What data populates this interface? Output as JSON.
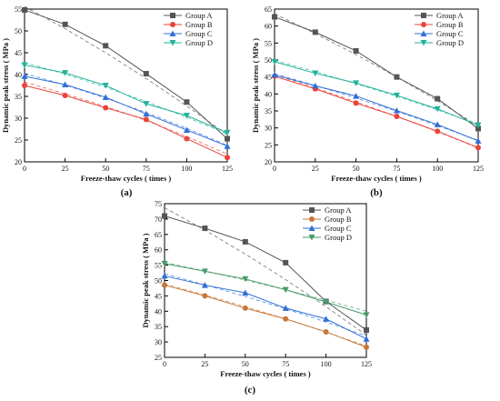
{
  "chart_data": [
    {
      "type": "line",
      "label": "(a)",
      "xlabel": "Freeze-thaw cycles ( times )",
      "ylabel": "Dynamic peak stress ( MPa )",
      "x": [
        0,
        25,
        50,
        75,
        100,
        125
      ],
      "xticks": [
        "0",
        "25",
        "50",
        "75",
        "100",
        "125"
      ],
      "yticks": [
        20,
        25,
        30,
        35,
        40,
        45,
        50,
        55
      ],
      "xlim": [
        0,
        125
      ],
      "ylim": [
        20,
        55
      ],
      "legend": "top-right",
      "fit_lines": "dashed",
      "series": [
        {
          "name": "Group A",
          "color": "#555555",
          "marker": "square",
          "values": [
            54.8,
            51.5,
            46.6,
            40.2,
            33.7,
            25.3
          ],
          "fit": [
            55.6,
            50.5,
            45.0,
            39.1,
            32.8,
            26.2
          ]
        },
        {
          "name": "Group B",
          "color": "#e8443a",
          "marker": "circle",
          "values": [
            37.5,
            35.2,
            32.4,
            29.7,
            25.3,
            21.0
          ],
          "fit": [
            38.3,
            35.6,
            32.7,
            29.5,
            25.8,
            21.8
          ]
        },
        {
          "name": "Group C",
          "color": "#2f6fd6",
          "marker": "triangle-up",
          "values": [
            39.6,
            37.7,
            34.8,
            31.0,
            27.3,
            23.6
          ],
          "fit": [
            40.3,
            37.6,
            34.6,
            31.3,
            27.7,
            23.8
          ]
        },
        {
          "name": "Group D",
          "color": "#22b39a",
          "marker": "triangle-down",
          "values": [
            42.2,
            40.4,
            37.5,
            33.3,
            30.6,
            26.7
          ],
          "fit": [
            42.8,
            40.1,
            37.1,
            33.8,
            30.2,
            26.4
          ]
        }
      ]
    },
    {
      "type": "line",
      "label": "(b)",
      "xlabel": "Freeze-thaw cycles ( times )",
      "ylabel": "Dynamic peak stress ( MPa )",
      "x": [
        0,
        25,
        50,
        75,
        100,
        125
      ],
      "xticks": [
        "0",
        "25",
        "50",
        "75",
        "100",
        "125"
      ],
      "yticks": [
        20,
        25,
        30,
        35,
        40,
        45,
        50,
        55,
        60,
        65
      ],
      "xlim": [
        0,
        125
      ],
      "ylim": [
        20,
        65
      ],
      "legend": "top-right",
      "fit_lines": "dashed",
      "series": [
        {
          "name": "Group A",
          "color": "#555555",
          "marker": "square",
          "values": [
            62.7,
            58.2,
            52.7,
            45.0,
            38.6,
            29.8
          ],
          "fit": [
            63.6,
            57.8,
            51.6,
            45.0,
            38.0,
            30.6
          ]
        },
        {
          "name": "Group B",
          "color": "#e8443a",
          "marker": "circle",
          "values": [
            45.2,
            41.5,
            37.3,
            33.4,
            29.0,
            24.2
          ],
          "fit": [
            45.6,
            41.8,
            37.7,
            33.4,
            28.9,
            24.1
          ]
        },
        {
          "name": "Group C",
          "color": "#2f6fd6",
          "marker": "triangle-up",
          "values": [
            45.6,
            42.4,
            39.4,
            35.1,
            31.0,
            26.2
          ],
          "fit": [
            46.0,
            42.5,
            38.8,
            34.9,
            30.7,
            26.3
          ]
        },
        {
          "name": "Group D",
          "color": "#22b39a",
          "marker": "triangle-down",
          "values": [
            49.5,
            46.1,
            43.2,
            39.6,
            35.6,
            30.8
          ],
          "fit": [
            49.9,
            46.6,
            43.0,
            39.3,
            35.3,
            31.1
          ]
        }
      ]
    },
    {
      "type": "line",
      "label": "(c)",
      "xlabel": "Freeze-thaw cycles ( times )",
      "ylabel": "Dynamic peak stress ( MPa )",
      "x": [
        0,
        25,
        50,
        75,
        100,
        125
      ],
      "xticks": [
        "0",
        "25",
        "50",
        "75",
        "100",
        "125"
      ],
      "yticks": [
        25,
        30,
        35,
        40,
        45,
        50,
        55,
        60,
        65,
        70,
        75
      ],
      "xlim": [
        0,
        125
      ],
      "ylim": [
        25,
        75
      ],
      "legend": "top-right",
      "fit_lines": "dashed",
      "series": [
        {
          "name": "Group A",
          "color": "#555555",
          "marker": "square",
          "values": [
            71.0,
            67.0,
            62.6,
            55.8,
            43.2,
            33.9
          ],
          "fit": [
            73.7,
            66.4,
            58.6,
            50.3,
            41.5,
            32.2
          ]
        },
        {
          "name": "Group B",
          "color": "#c8773a",
          "marker": "circle",
          "values": [
            48.5,
            45.0,
            41.0,
            37.5,
            33.3,
            28.3
          ],
          "fit": [
            48.9,
            45.3,
            41.5,
            37.5,
            33.2,
            28.7
          ]
        },
        {
          "name": "Group C",
          "color": "#2f6fd6",
          "marker": "triangle-up",
          "values": [
            51.5,
            48.5,
            46.0,
            41.0,
            37.5,
            31.0
          ],
          "fit": [
            52.2,
            48.6,
            44.8,
            40.8,
            36.5,
            32.0
          ]
        },
        {
          "name": "Group D",
          "color": "#4a9a6a",
          "marker": "triangle-down",
          "values": [
            55.5,
            53.0,
            50.5,
            47.0,
            43.0,
            38.8
          ],
          "fit": [
            55.9,
            53.1,
            50.1,
            47.0,
            43.6,
            40.0
          ]
        }
      ]
    }
  ]
}
